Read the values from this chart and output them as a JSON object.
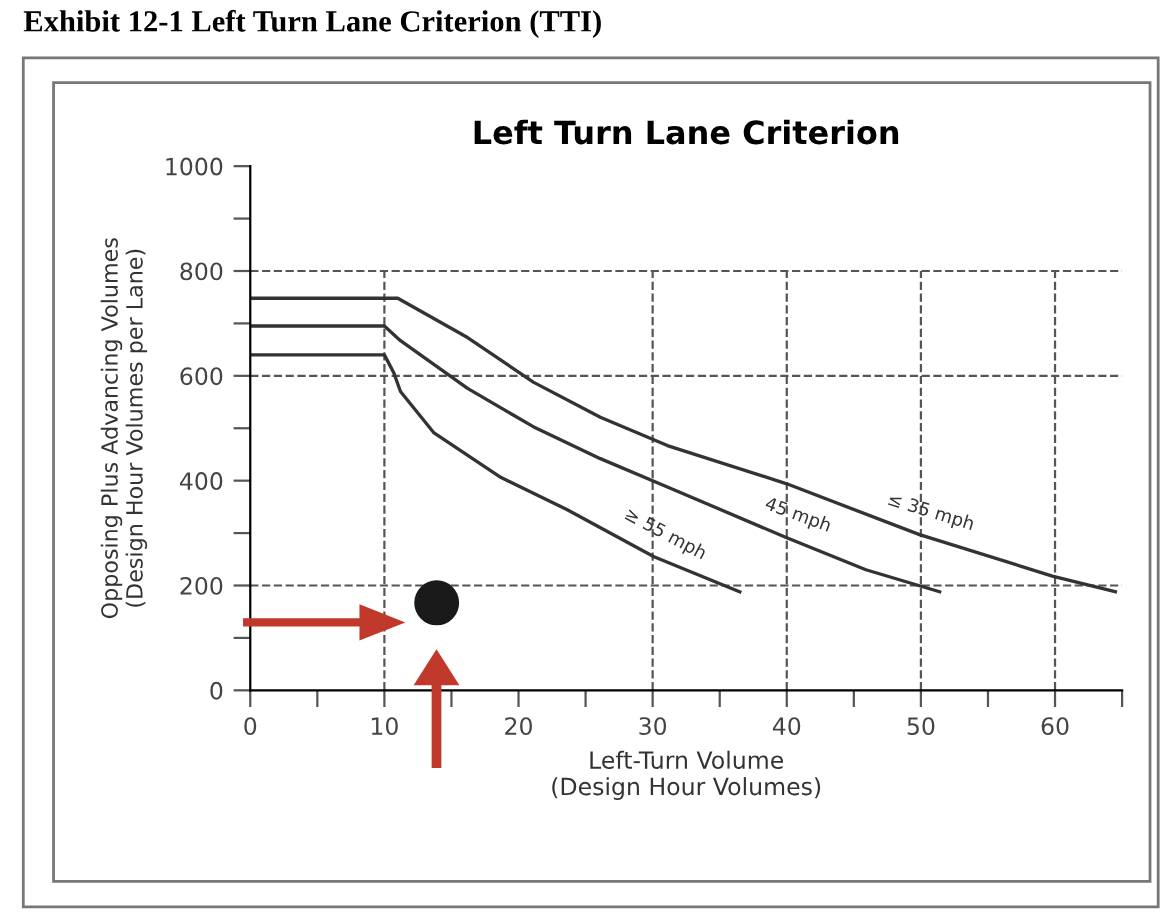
{
  "chart_data": {
    "type": "line",
    "title": "Exhibit 12-1 Left Turn Lane Criterion (TTI)",
    "subtitle": "Left Turn Lane Criterion",
    "xlabel": "Left-Turn Volume\n(Design Hour Volumes)",
    "ylabel": "Opposing Plus Advancing Volumes\n(Design Hour Volumes per Lane)",
    "series": [
      {
        "color": "#333333",
        "x": [
          0,
          10,
          10.7,
          11.2,
          13.7,
          18.7,
          23.6,
          30.1,
          36.5
        ],
        "values": [
          640,
          640,
          606,
          570,
          491,
          406,
          345,
          255,
          188
        ]
      },
      {
        "color": "#333333",
        "x": [
          0,
          10,
          11.2,
          16.2,
          21.1,
          26.1,
          31.1,
          40,
          45.9,
          51.4
        ],
        "values": [
          695,
          695,
          667,
          576,
          503,
          442,
          388,
          291,
          230,
          188
        ]
      },
      {
        "color": "#333333",
        "x": [
          0,
          11,
          16.2,
          21.1,
          26.1,
          31.1,
          40,
          49.9,
          59.8,
          64.5
        ],
        "values": [
          748,
          748,
          673,
          588,
          521,
          467,
          394,
          297,
          218,
          188
        ]
      },
      {
        "type": "scatter",
        "color": "#1a1a1a",
        "x": [
          13.9
        ],
        "values": [
          167
        ]
      }
    ],
    "annotations": [
      {
        "text": "≥ 55 mph",
        "x": 30.1,
        "y": 255
      },
      {
        "text": "45 mph",
        "x": 40,
        "y": 291
      },
      {
        "text": "≤ 35 mph",
        "x": 49.9,
        "y": 297
      }
    ],
    "ref_lines": [
      {
        "axis": "x",
        "value": 10
      },
      {
        "axis": "x",
        "value": 30
      },
      {
        "axis": "x",
        "value": 40
      },
      {
        "axis": "x",
        "value": 50
      },
      {
        "axis": "x",
        "value": 60
      },
      {
        "axis": "y",
        "value": 200
      },
      {
        "axis": "y",
        "value": 600
      },
      {
        "axis": "y",
        "value": 800
      }
    ],
    "xlim": [
      0,
      65
    ],
    "ylim": [
      0,
      1000
    ],
    "xticks": [
      0,
      {
        "value": 5,
        "label": null
      },
      10,
      {
        "value": 15,
        "label": null
      },
      20,
      {
        "value": 25,
        "label": null
      },
      30,
      {
        "value": 35,
        "label": null
      },
      40,
      {
        "value": 45,
        "label": null
      },
      50,
      {
        "value": 55,
        "label": null
      },
      60,
      {
        "value": 65,
        "label": null
      }
    ],
    "yticks": [
      0,
      {
        "value": 100,
        "label": null
      },
      200,
      {
        "value": 300,
        "label": null
      },
      400,
      {
        "value": 500,
        "label": null
      },
      600,
      {
        "value": 700,
        "label": null
      },
      800,
      {
        "value": 900,
        "label": null
      },
      1000
    ],
    "grid": false,
    "legend": false,
    "line_style": "solid"
  }
}
